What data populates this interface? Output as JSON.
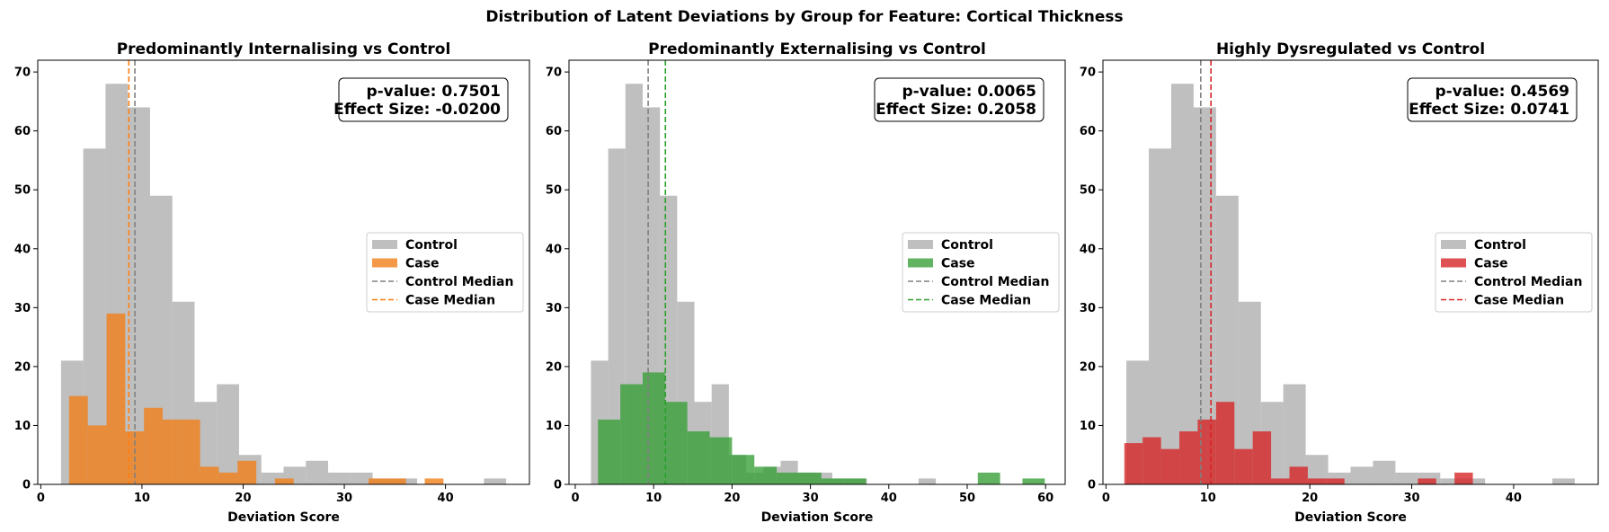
{
  "figure": {
    "title": "Distribution of Latent Deviations by Group for Feature: Cortical Thickness"
  },
  "chart_data": [
    {
      "type": "bar",
      "title": "Predominantly Internalising vs Control",
      "xlabel": "Deviation Score",
      "ylabel": "",
      "xlim": [
        -0.3,
        48.3
      ],
      "ylim": [
        0,
        72
      ],
      "xticks": [
        0,
        10,
        20,
        30,
        40
      ],
      "yticks": [
        0,
        10,
        20,
        30,
        40,
        50,
        60,
        70
      ],
      "stats": [
        "p-value: 0.7501",
        "Effect Size: -0.0200"
      ],
      "legend": {
        "placement": "center-right",
        "entries": [
          "Control",
          "Case",
          "Control Median",
          "Case Median"
        ]
      },
      "control": {
        "name": "Control",
        "color": "#a9a9a9",
        "bin_start": 2.0,
        "bin_width": 2.2,
        "counts": [
          21,
          57,
          68,
          64,
          49,
          31,
          14,
          17,
          5,
          2,
          3,
          4,
          2,
          2,
          1,
          1,
          0,
          0,
          0,
          1
        ]
      },
      "case": {
        "name": "Case",
        "color": "#f07f1a",
        "bin_start": 2.8,
        "bin_width": 1.85,
        "counts": [
          15,
          10,
          29,
          9,
          13,
          11,
          11,
          3,
          2,
          4,
          0,
          1,
          0,
          0,
          0,
          0,
          1,
          1,
          0,
          1
        ]
      },
      "control_median": {
        "name": "Control Median",
        "value": 9.3,
        "color": "#808080"
      },
      "case_median": {
        "name": "Case Median",
        "value": 8.7,
        "color": "#ff7f0e"
      }
    },
    {
      "type": "bar",
      "title": "Predominantly Externalising vs Control",
      "xlabel": "Deviation Score",
      "ylabel": "",
      "xlim": [
        -0.8,
        62.5
      ],
      "ylim": [
        0,
        72
      ],
      "xticks": [
        0,
        10,
        20,
        30,
        40,
        50,
        60
      ],
      "yticks": [
        0,
        10,
        20,
        30,
        40,
        50,
        60,
        70
      ],
      "stats": [
        "p-value: 0.0065",
        "Effect Size: 0.2058"
      ],
      "legend": {
        "placement": "center-right",
        "entries": [
          "Control",
          "Case",
          "Control Median",
          "Case Median"
        ]
      },
      "control": {
        "name": "Control",
        "color": "#a9a9a9",
        "bin_start": 2.0,
        "bin_width": 2.2,
        "counts": [
          21,
          57,
          68,
          64,
          49,
          31,
          14,
          17,
          5,
          2,
          3,
          4,
          2,
          2,
          1,
          1,
          0,
          0,
          0,
          1
        ]
      },
      "case": {
        "name": "Case",
        "color": "#3aa03a",
        "bin_start": 2.9,
        "bin_width": 2.85,
        "counts": [
          11,
          17,
          19,
          14,
          9,
          8,
          5,
          3,
          2,
          2,
          1,
          1,
          0,
          0,
          0,
          0,
          0,
          2,
          0,
          1
        ]
      },
      "control_median": {
        "name": "Control Median",
        "value": 9.3,
        "color": "#808080"
      },
      "case_median": {
        "name": "Case Median",
        "value": 11.5,
        "color": "#2ca02c"
      }
    },
    {
      "type": "bar",
      "title": "Highly Dysregulated vs Control",
      "xlabel": "Deviation Score",
      "ylabel": "",
      "xlim": [
        -0.3,
        48.3
      ],
      "ylim": [
        0,
        72
      ],
      "xticks": [
        0,
        10,
        20,
        30,
        40
      ],
      "yticks": [
        0,
        10,
        20,
        30,
        40,
        50,
        60,
        70
      ],
      "stats": [
        "p-value: 0.4569",
        "Effect Size: 0.0741"
      ],
      "legend": {
        "placement": "center-right",
        "entries": [
          "Control",
          "Case",
          "Control Median",
          "Case Median"
        ]
      },
      "control": {
        "name": "Control",
        "color": "#a9a9a9",
        "bin_start": 2.0,
        "bin_width": 2.2,
        "counts": [
          21,
          57,
          68,
          64,
          49,
          31,
          14,
          17,
          5,
          2,
          3,
          4,
          2,
          2,
          1,
          1,
          0,
          0,
          0,
          1
        ]
      },
      "case": {
        "name": "Case",
        "color": "#d62728",
        "bin_start": 1.8,
        "bin_width": 1.8,
        "counts": [
          7,
          8,
          6,
          9,
          11,
          14,
          6,
          9,
          1,
          3,
          1,
          1,
          0,
          0,
          0,
          0,
          1,
          0,
          2,
          0
        ]
      },
      "control_median": {
        "name": "Control Median",
        "value": 9.3,
        "color": "#808080"
      },
      "case_median": {
        "name": "Case Median",
        "value": 10.3,
        "color": "#d62728"
      }
    }
  ]
}
